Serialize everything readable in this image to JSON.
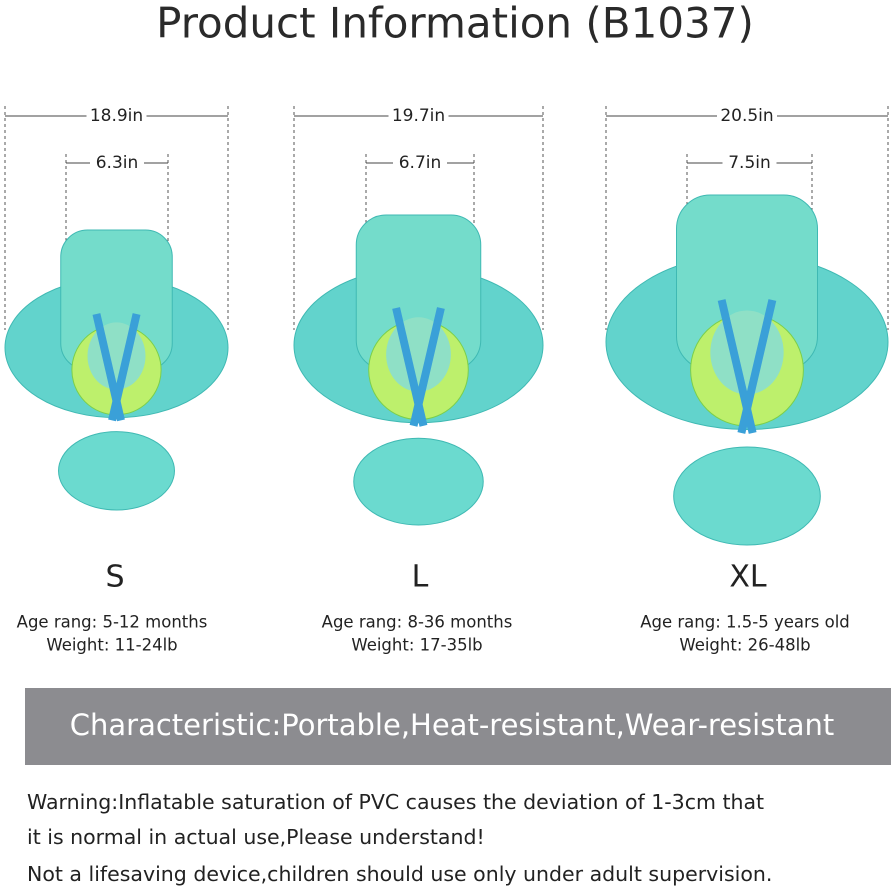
{
  "header": {
    "title": "Product Information (B1037)"
  },
  "products": [
    {
      "outer_width": "18.9in",
      "inner_width": "6.3in",
      "size": "S",
      "age": "Age rang: 5-12 months",
      "weight": "Weight: 11-24lb"
    },
    {
      "outer_width": "19.7in",
      "inner_width": "6.7in",
      "size": "L",
      "age": "Age rang: 8-36 months",
      "weight": "Weight: 17-35lb"
    },
    {
      "outer_width": "20.5in",
      "inner_width": "7.5in",
      "size": "XL",
      "age": "Age rang: 1.5-5 years old",
      "weight": "Weight: 26-48lb"
    }
  ],
  "characteristic": "Characteristic:Portable,Heat-resistant,Wear-resistant",
  "warning": [
    "Warning:Inflatable saturation of PVC causes the deviation of 1-3cm that",
    "it is normal in actual use,Please understand!",
    "Not a lifesaving device,children should use only under adult supervision."
  ]
}
